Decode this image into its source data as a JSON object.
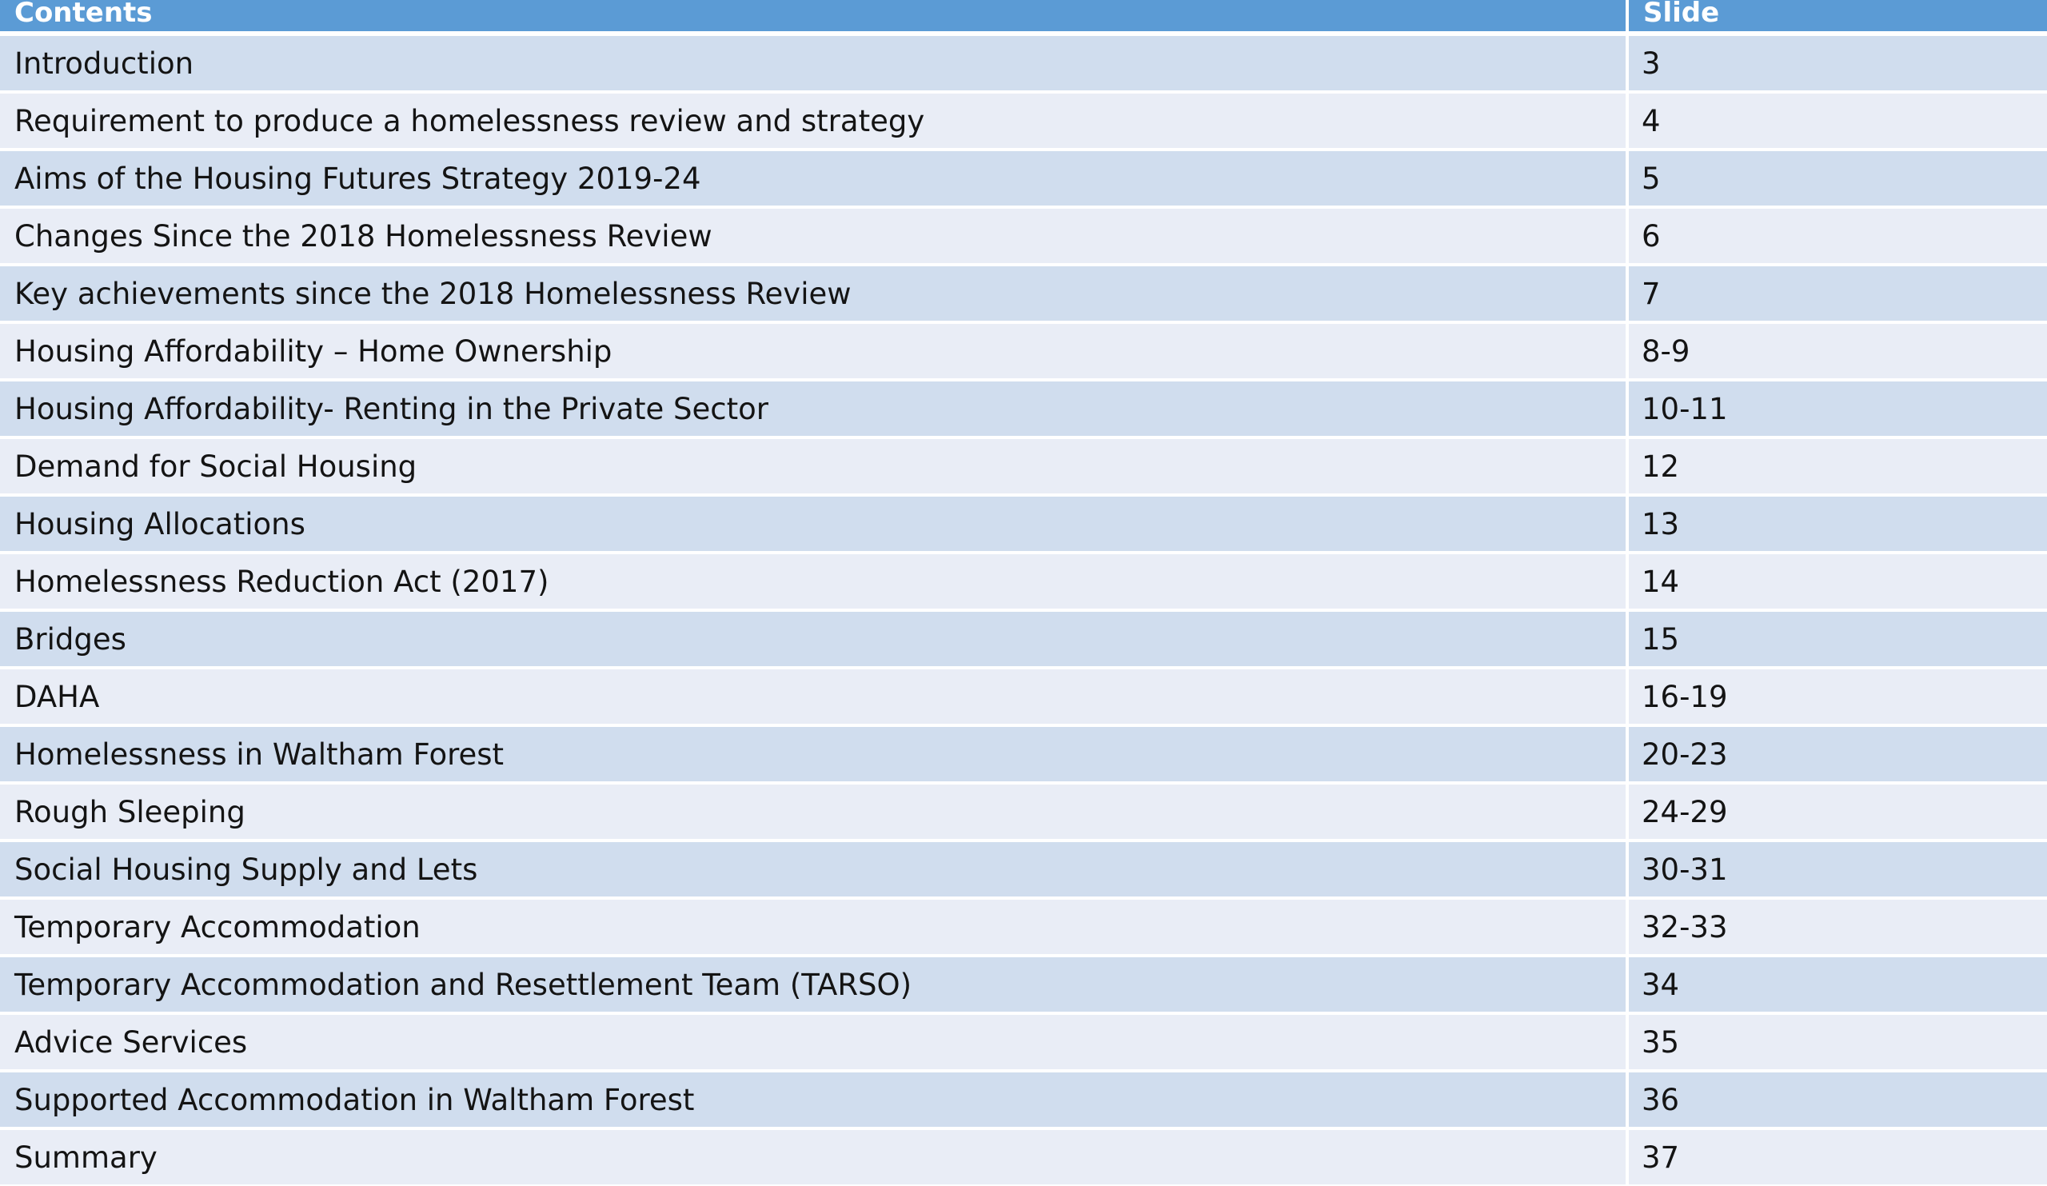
{
  "header": {
    "contents": "Contents",
    "slide": "Slide"
  },
  "rows": [
    {
      "title": "Introduction",
      "slide": "3"
    },
    {
      "title": "Requirement to produce a homelessness review and strategy",
      "slide": "4"
    },
    {
      "title": "Aims of the Housing Futures Strategy 2019-24",
      "slide": "5"
    },
    {
      "title": "Changes Since the 2018 Homelessness Review",
      "slide": "6"
    },
    {
      "title": "Key achievements since the 2018 Homelessness Review",
      "slide": "7"
    },
    {
      "title": "Housing Affordability – Home Ownership",
      "slide": "8-9"
    },
    {
      "title": "Housing Affordability- Renting in the Private Sector",
      "slide": "10-11"
    },
    {
      "title": "Demand for Social Housing",
      "slide": "12"
    },
    {
      "title": "Housing Allocations",
      "slide": "13"
    },
    {
      "title": "Homelessness Reduction Act (2017)",
      "slide": "14"
    },
    {
      "title": "Bridges",
      "slide": "15"
    },
    {
      "title": "DAHA",
      "slide": "16-19"
    },
    {
      "title": "Homelessness in Waltham Forest",
      "slide": "20-23"
    },
    {
      "title": "Rough Sleeping",
      "slide": "24-29"
    },
    {
      "title": "Social Housing Supply and Lets",
      "slide": "30-31"
    },
    {
      "title": "Temporary Accommodation",
      "slide": "32-33"
    },
    {
      "title": "Temporary Accommodation and Resettlement Team (TARSO)",
      "slide": "34"
    },
    {
      "title": "Advice Services",
      "slide": "35"
    },
    {
      "title": "Supported Accommodation in Waltham Forest",
      "slide": "36"
    },
    {
      "title": "Summary",
      "slide": "37"
    }
  ],
  "colors": {
    "header_bg": "#5b9bd5",
    "row_odd": "#d0ddee",
    "row_even": "#e9edf6"
  }
}
